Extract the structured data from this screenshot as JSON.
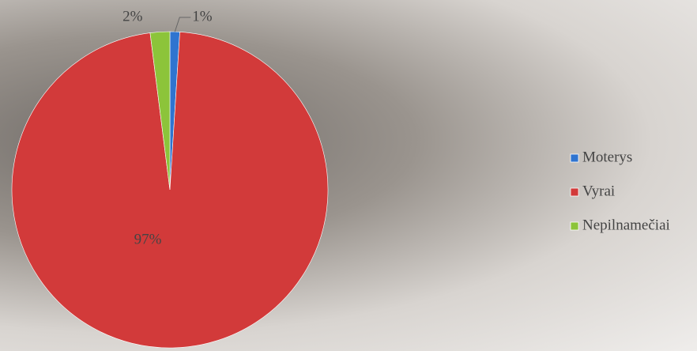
{
  "chart_data": {
    "type": "pie",
    "categories": [
      "Moterys",
      "Vyrai",
      "Nepilnamečiai"
    ],
    "values": [
      1,
      97,
      2
    ],
    "value_labels": [
      "1%",
      "97%",
      "2%"
    ],
    "colors": [
      "#2f74d0",
      "#d23a3a",
      "#8cc43a"
    ],
    "legend": "right"
  }
}
